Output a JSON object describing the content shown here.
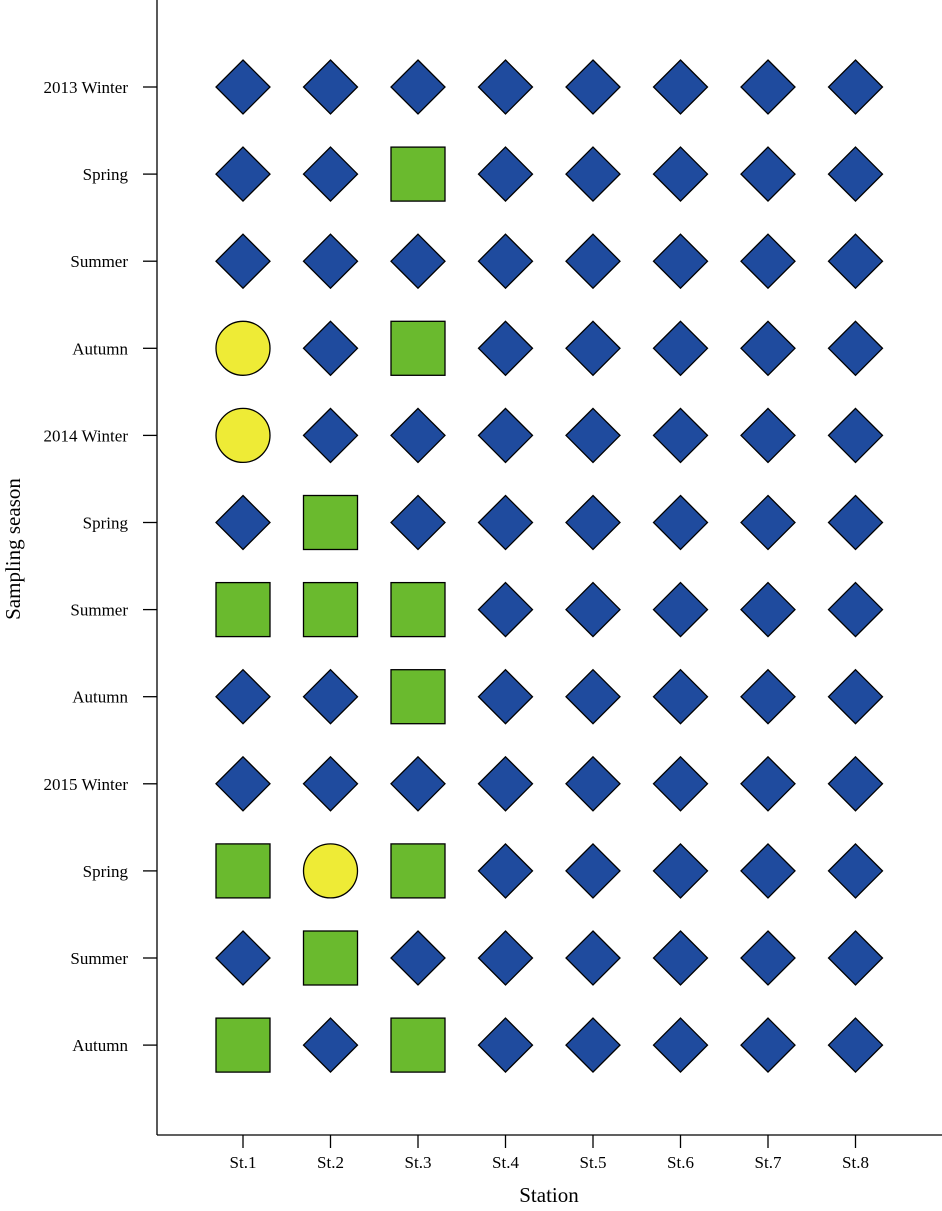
{
  "chart_data": {
    "type": "scatter",
    "title": "",
    "xlabel": "Station",
    "ylabel": "Sampling season",
    "stations": [
      "St.1",
      "St.2",
      "St.3",
      "St.4",
      "St.5",
      "St.6",
      "St.7",
      "St.8"
    ],
    "seasons": [
      "2013 Winter",
      "Spring",
      "Summer",
      "Autumn",
      "2014 Winter",
      "Spring",
      "Summer",
      "Autumn",
      "2015 Winter",
      "Spring",
      "Summer",
      "Autumn"
    ],
    "marker_styles": {
      "D": {
        "shape": "diamond",
        "color": "#1f4b9e"
      },
      "S": {
        "shape": "square",
        "color": "#6aba2e"
      },
      "C": {
        "shape": "circle",
        "color": "#eeeb36"
      }
    },
    "grid": [
      [
        "D",
        "D",
        "D",
        "D",
        "D",
        "D",
        "D",
        "D"
      ],
      [
        "D",
        "D",
        "S",
        "D",
        "D",
        "D",
        "D",
        "D"
      ],
      [
        "D",
        "D",
        "D",
        "D",
        "D",
        "D",
        "D",
        "D"
      ],
      [
        "C",
        "D",
        "S",
        "D",
        "D",
        "D",
        "D",
        "D"
      ],
      [
        "C",
        "D",
        "D",
        "D",
        "D",
        "D",
        "D",
        "D"
      ],
      [
        "D",
        "S",
        "D",
        "D",
        "D",
        "D",
        "D",
        "D"
      ],
      [
        "S",
        "S",
        "S",
        "D",
        "D",
        "D",
        "D",
        "D"
      ],
      [
        "D",
        "D",
        "S",
        "D",
        "D",
        "D",
        "D",
        "D"
      ],
      [
        "D",
        "D",
        "D",
        "D",
        "D",
        "D",
        "D",
        "D"
      ],
      [
        "S",
        "C",
        "S",
        "D",
        "D",
        "D",
        "D",
        "D"
      ],
      [
        "D",
        "S",
        "D",
        "D",
        "D",
        "D",
        "D",
        "D"
      ],
      [
        "S",
        "D",
        "S",
        "D",
        "D",
        "D",
        "D",
        "D"
      ]
    ],
    "grid_lines": false,
    "legend": "none"
  }
}
